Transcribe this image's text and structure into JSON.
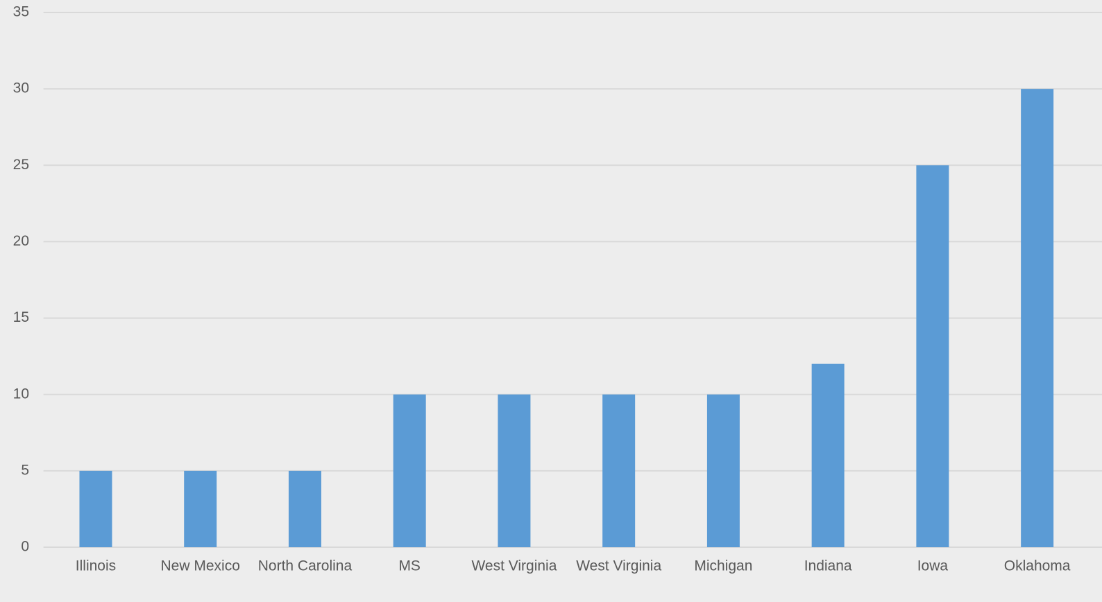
{
  "chart_data": {
    "type": "bar",
    "categories": [
      "Illinois",
      "New Mexico",
      "North Carolina",
      "MS",
      "West Virginia",
      "West Virginia",
      "Michigan",
      "Indiana",
      "Iowa",
      "Oklahoma"
    ],
    "values": [
      5,
      5,
      5,
      10,
      10,
      10,
      10,
      12,
      25,
      30
    ],
    "color": "#5b9bd5",
    "ylim": [
      0,
      35
    ],
    "yticks": [
      0,
      5,
      10,
      15,
      20,
      25,
      30,
      35
    ],
    "grid": true
  }
}
